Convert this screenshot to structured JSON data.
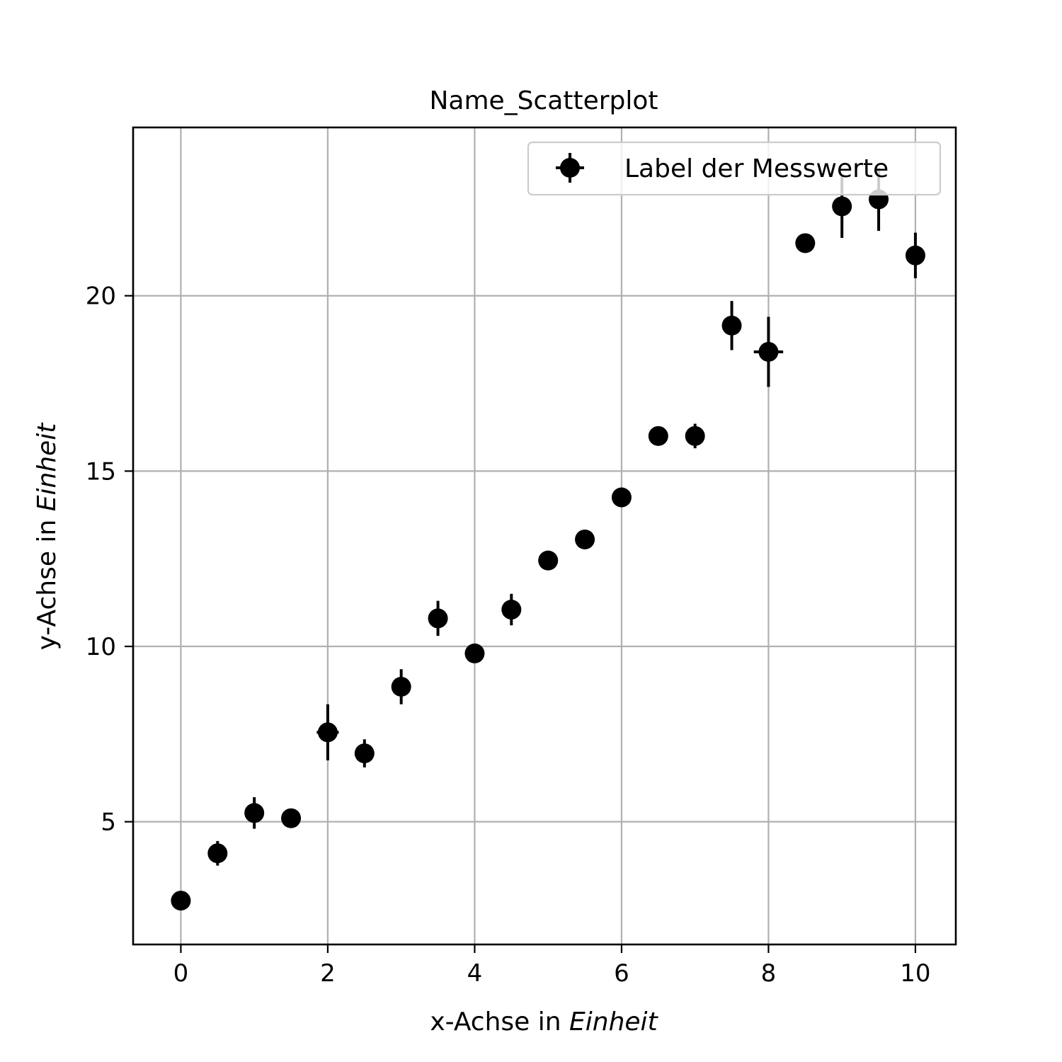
{
  "chart_data": {
    "type": "scatter",
    "title": "Name_Scatterplot",
    "xlabel": {
      "prefix": "x-Achse in ",
      "unit": "Einheit"
    },
    "ylabel": {
      "prefix": "y-Achse in ",
      "unit": "Einheit"
    },
    "xlim": [
      -0.65,
      10.55
    ],
    "ylim": [
      1.5,
      24.8
    ],
    "xticks": [
      0,
      2,
      4,
      6,
      8,
      10
    ],
    "yticks": [
      5,
      10,
      15,
      20
    ],
    "grid": true,
    "legend_position": "top-right",
    "series": [
      {
        "name": "Label der Messwerte",
        "color": "#000000",
        "points": [
          {
            "x": 0.0,
            "y": 2.75,
            "yerr": 0.0,
            "xerr": 0.0
          },
          {
            "x": 0.5,
            "y": 4.1,
            "yerr": 0.35,
            "xerr": 0.0
          },
          {
            "x": 1.0,
            "y": 5.25,
            "yerr": 0.45,
            "xerr": 0.1
          },
          {
            "x": 1.5,
            "y": 5.1,
            "yerr": 0.0,
            "xerr": 0.0
          },
          {
            "x": 2.0,
            "y": 7.55,
            "yerr": 0.8,
            "xerr": 0.15
          },
          {
            "x": 2.5,
            "y": 6.95,
            "yerr": 0.4,
            "xerr": 0.0
          },
          {
            "x": 3.0,
            "y": 8.85,
            "yerr": 0.5,
            "xerr": 0.0
          },
          {
            "x": 3.5,
            "y": 10.8,
            "yerr": 0.5,
            "xerr": 0.0
          },
          {
            "x": 4.0,
            "y": 9.8,
            "yerr": 0.0,
            "xerr": 0.0
          },
          {
            "x": 4.5,
            "y": 11.05,
            "yerr": 0.45,
            "xerr": 0.0
          },
          {
            "x": 5.0,
            "y": 12.45,
            "yerr": 0.0,
            "xerr": 0.0
          },
          {
            "x": 5.5,
            "y": 13.05,
            "yerr": 0.0,
            "xerr": 0.0
          },
          {
            "x": 6.0,
            "y": 14.25,
            "yerr": 0.0,
            "xerr": 0.0
          },
          {
            "x": 6.5,
            "y": 16.0,
            "yerr": 0.0,
            "xerr": 0.0
          },
          {
            "x": 7.0,
            "y": 16.0,
            "yerr": 0.35,
            "xerr": 0.0
          },
          {
            "x": 7.5,
            "y": 19.15,
            "yerr": 0.7,
            "xerr": 0.0
          },
          {
            "x": 8.0,
            "y": 18.4,
            "yerr": 1.0,
            "xerr": 0.2
          },
          {
            "x": 8.5,
            "y": 21.5,
            "yerr": 0.0,
            "xerr": 0.0
          },
          {
            "x": 9.0,
            "y": 22.55,
            "yerr": 0.9,
            "xerr": 0.0
          },
          {
            "x": 9.5,
            "y": 22.75,
            "yerr": 0.9,
            "xerr": 0.0
          },
          {
            "x": 10.0,
            "y": 21.15,
            "yerr": 0.65,
            "xerr": 0.0
          }
        ]
      }
    ]
  }
}
